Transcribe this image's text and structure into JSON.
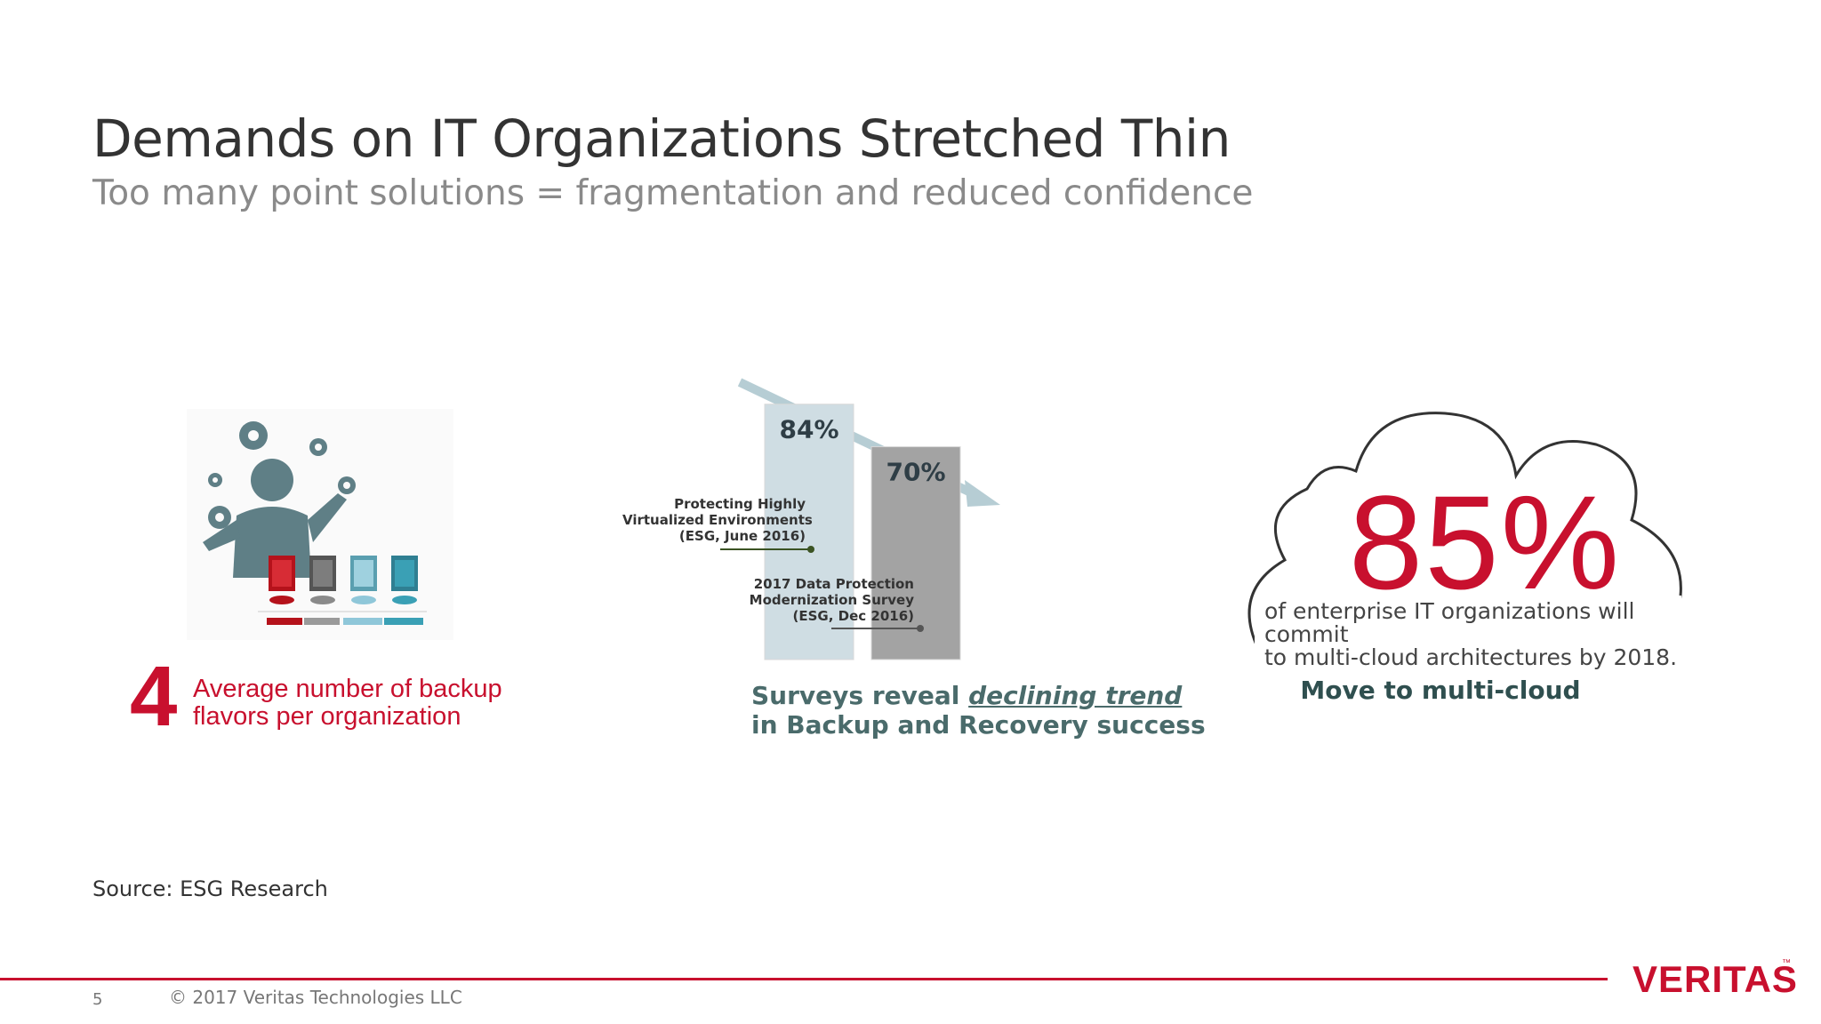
{
  "slide": {
    "title": "Demands on IT Organizations Stretched Thin",
    "subtitle": "Too many point solutions = fragmentation and reduced confidence",
    "source": "Source: ESG Research",
    "page_number": "5",
    "copyright": "© 2017 Veritas Technologies LLC",
    "logo_text": "VERITAS",
    "logo_tm": "™"
  },
  "left_panel": {
    "big_number": "4",
    "text_line1": "Average number of backup",
    "text_line2": "flavors per organization",
    "icon": "person-with-servers-icon",
    "server_colors": [
      "#b5121b",
      "#7d7d7d",
      "#8fc7d9",
      "#3aa0b5"
    ]
  },
  "middle_panel": {
    "caption_line1_prefix": "Surveys reveal ",
    "caption_line1_emphasis": "declining trend",
    "caption_line2": "in Backup and Recovery success",
    "annotation1": [
      "Protecting Highly",
      "Virtualized Environments",
      "(ESG, June 2016)"
    ],
    "annotation2": [
      "2017 Data Protection",
      "Modernization Survey",
      "(ESG, Dec 2016)"
    ]
  },
  "chart_data": {
    "type": "bar",
    "categories": [
      "Protecting Highly Virtualized Environments (ESG, June 2016)",
      "2017 Data Protection Modernization Survey (ESG, Dec 2016)"
    ],
    "values": [
      84,
      70
    ],
    "value_labels": [
      "84%",
      "70%"
    ],
    "colors": [
      "#cfdde3",
      "#a3a3a3"
    ],
    "trend": "declining",
    "ylim": [
      0,
      100
    ]
  },
  "right_panel": {
    "big_number": "85%",
    "text_line1": "of enterprise IT organizations will commit",
    "text_line2": "to multi-cloud architectures by 2018.",
    "caption": "Move to multi-cloud",
    "icon": "cloud-outline-icon"
  },
  "colors": {
    "accent_red": "#c8102e",
    "title_gray": "#333333",
    "subtitle_gray": "#8a8a8a",
    "teal_text": "#4a6b6b"
  }
}
